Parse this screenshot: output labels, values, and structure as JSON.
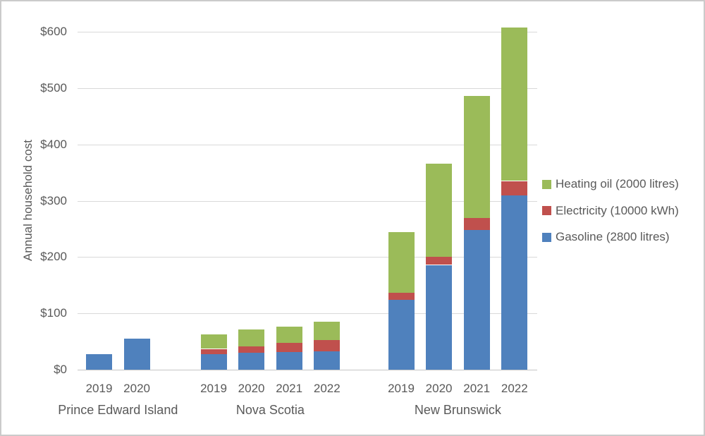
{
  "chart_data": {
    "type": "bar",
    "stacked": true,
    "title": "",
    "xlabel": "",
    "ylabel": "Annual household cost",
    "ylim": [
      0,
      600
    ],
    "ytick_step": 100,
    "ytick_prefix": "$",
    "grid": true,
    "legend_position": "right",
    "series": [
      {
        "name": "Gasoline (2800 litres)",
        "color": "#4F81BD"
      },
      {
        "name": "Electricity (10000 kWh)",
        "color": "#C0504D"
      },
      {
        "name": "Heating oil (2000 litres)",
        "color": "#9BBB59"
      }
    ],
    "legend_order": [
      2,
      1,
      0
    ],
    "groups": [
      {
        "label": "Prince Edward Island",
        "bars": [
          {
            "year": "2019",
            "values": [
              28,
              0,
              0
            ]
          },
          {
            "year": "2020",
            "values": [
              55,
              0,
              0
            ]
          }
        ]
      },
      {
        "label": "Nova Scotia",
        "bars": [
          {
            "year": "2019",
            "values": [
              28,
              9,
              26
            ]
          },
          {
            "year": "2020",
            "values": [
              30,
              11,
              31
            ]
          },
          {
            "year": "2021",
            "values": [
              31,
              17,
              29
            ]
          },
          {
            "year": "2022",
            "values": [
              33,
              20,
              32
            ]
          }
        ]
      },
      {
        "label": "New Brunswick",
        "bars": [
          {
            "year": "2019",
            "values": [
              124,
              12,
              108
            ]
          },
          {
            "year": "2020",
            "values": [
              186,
              14,
              166
            ]
          },
          {
            "year": "2021",
            "values": [
              248,
              21,
              217
            ]
          },
          {
            "year": "2022",
            "values": [
              310,
              25,
              273
            ]
          }
        ]
      }
    ],
    "colors": {
      "grid": "#D9D9D9",
      "axis_line": "#C6C6C6",
      "text": "#595959",
      "background": "#FFFFFF",
      "frame_border": "#CBCBCB"
    }
  }
}
